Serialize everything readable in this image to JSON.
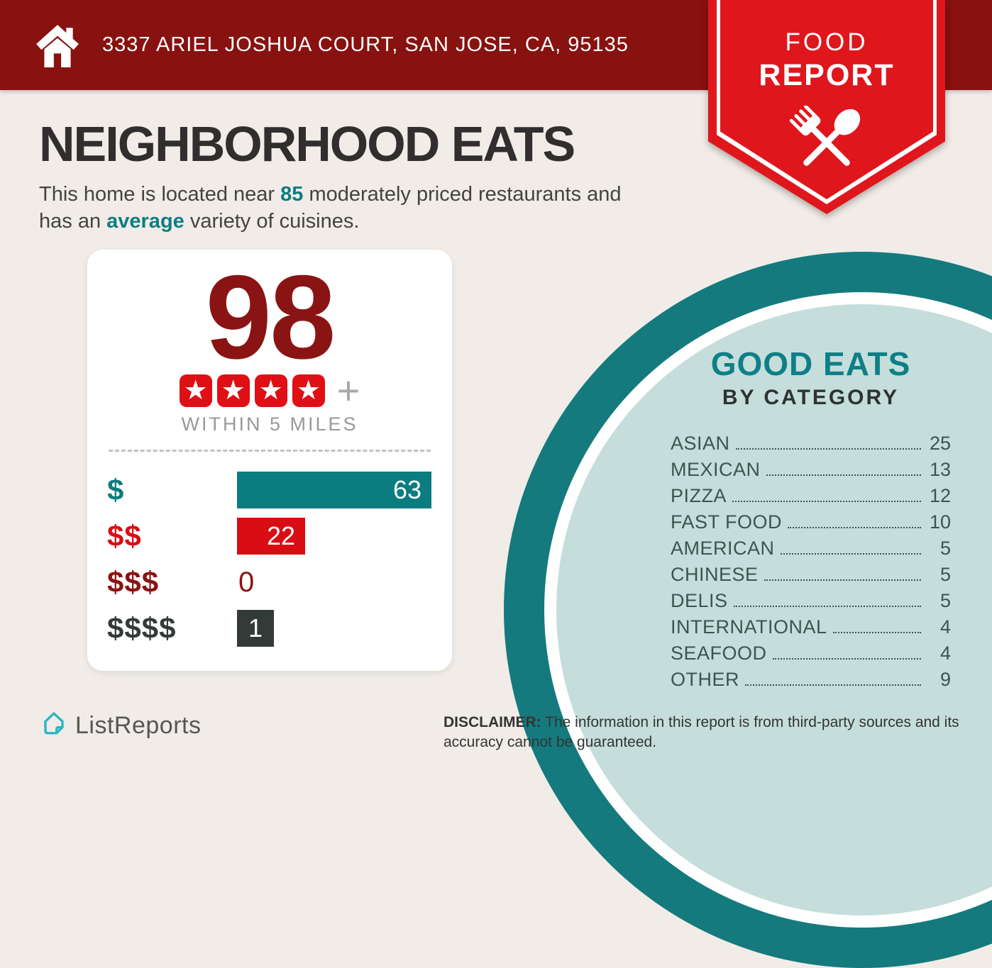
{
  "header": {
    "address": "3337 ARIEL JOSHUA COURT, SAN JOSE, CA, 95135",
    "ribbon_line1": "FOOD",
    "ribbon_line2": "REPORT"
  },
  "title": "NEIGHBORHOOD EATS",
  "intro": {
    "line1_pre": "This home is located near ",
    "count": "85",
    "line1_post": " moderately priced restaurants and",
    "line2_pre": "has an ",
    "highlight": "average",
    "line2_post": " variety of cuisines."
  },
  "score_card": {
    "score": "98",
    "stars": 4,
    "plus": "+",
    "radius_label": "WITHIN 5 MILES",
    "price_bars": [
      {
        "label": "$",
        "value": 63,
        "color": "#0b7c80",
        "label_color": "#0b7c80"
      },
      {
        "label": "$$",
        "value": 22,
        "color": "#d90d14",
        "label_color": "#d90d14"
      },
      {
        "label": "$$$",
        "value": 0,
        "color": null,
        "label_color": "#8a1413"
      },
      {
        "label": "$$$$",
        "value": 1,
        "color": "#333b38",
        "label_color": "#333b38"
      }
    ]
  },
  "good_eats": {
    "title": "GOOD EATS",
    "subtitle": "BY CATEGORY",
    "categories": [
      {
        "label": "ASIAN",
        "value": 25
      },
      {
        "label": "MEXICAN",
        "value": 13
      },
      {
        "label": "PIZZA",
        "value": 12
      },
      {
        "label": "FAST FOOD",
        "value": 10
      },
      {
        "label": "AMERICAN",
        "value": 5
      },
      {
        "label": "CHINESE",
        "value": 5
      },
      {
        "label": "DELIS",
        "value": 5
      },
      {
        "label": "INTERNATIONAL",
        "value": 4
      },
      {
        "label": "SEAFOOD",
        "value": 4
      },
      {
        "label": "OTHER",
        "value": 9
      }
    ]
  },
  "footer": {
    "brand": "ListReports",
    "disclaimer_label": "DISCLAIMER:",
    "disclaimer_text": " The information in this report is from third-party sources and its accuracy cannot be guaranteed."
  },
  "colors": {
    "banner_maroon": "#87120f",
    "ribbon_red": "#e0161d",
    "score_maroon": "#8a1413",
    "bar_teal": "#0b7c80",
    "bar_red": "#d90d14",
    "bar_charcoal": "#333b38",
    "circle_ring_teal": "#147a7e",
    "circle_fill_light_teal": "#c5dedb",
    "accent_teal_text": "#0d7e82",
    "background": "#f1ece7",
    "logo_cyan": "#2ab7c3"
  },
  "chart_data": [
    {
      "type": "bar",
      "orientation": "horizontal",
      "title": "Restaurant count by price level (98 four-star+ within 5 miles)",
      "categories": [
        "$",
        "$$",
        "$$$",
        "$$$$"
      ],
      "values": [
        63,
        22,
        0,
        1
      ],
      "colors": [
        "#0b7c80",
        "#d90d14",
        "#8a1413",
        "#333b38"
      ],
      "xlim": [
        0,
        63
      ],
      "grid": false,
      "legend": "none"
    },
    {
      "type": "table",
      "title": "GOOD EATS BY CATEGORY",
      "categories": [
        "ASIAN",
        "MEXICAN",
        "PIZZA",
        "FAST FOOD",
        "AMERICAN",
        "CHINESE",
        "DELIS",
        "INTERNATIONAL",
        "SEAFOOD",
        "OTHER"
      ],
      "values": [
        25,
        13,
        12,
        10,
        5,
        5,
        5,
        4,
        4,
        9
      ]
    }
  ]
}
